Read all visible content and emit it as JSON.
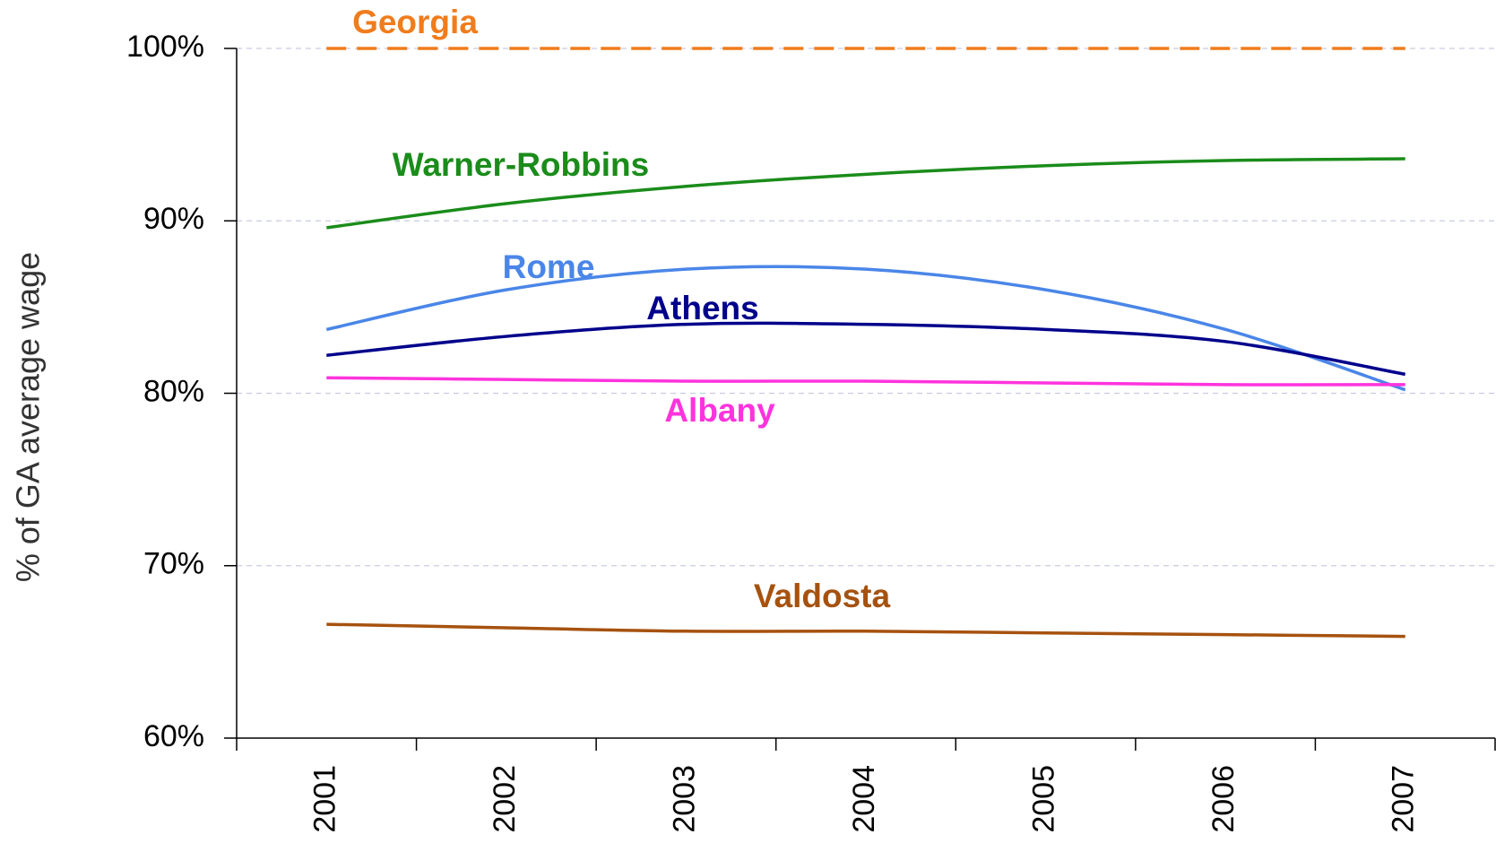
{
  "chart_data": {
    "type": "line",
    "y_axis_label": "% of GA average wage",
    "categories": [
      "2001",
      "2002",
      "2003",
      "2004",
      "2005",
      "2006",
      "2007"
    ],
    "series": [
      {
        "name": "Georgia",
        "color": "#f07c1c",
        "dashed": true,
        "values": [
          100,
          100,
          100,
          100,
          100,
          100,
          100
        ]
      },
      {
        "name": "Warner-Robbins",
        "color": "#1a8c1a",
        "values": [
          89.6,
          91.0,
          92.0,
          92.7,
          93.2,
          93.5,
          93.6
        ]
      },
      {
        "name": "Rome",
        "color": "#4a86e8",
        "values": [
          83.7,
          86.0,
          87.2,
          87.2,
          86.0,
          83.7,
          80.2
        ]
      },
      {
        "name": "Athens",
        "color": "#00008b",
        "values": [
          82.2,
          83.3,
          84.0,
          84.0,
          83.7,
          83.0,
          81.1
        ]
      },
      {
        "name": "Albany",
        "color": "#ff33dd",
        "values": [
          80.9,
          80.8,
          80.7,
          80.7,
          80.6,
          80.5,
          80.5
        ]
      },
      {
        "name": "Valdosta",
        "color": "#a6520f",
        "values": [
          66.6,
          66.4,
          66.2,
          66.2,
          66.1,
          66.0,
          65.9
        ]
      }
    ],
    "ylim": [
      60,
      100
    ],
    "yticks": [
      {
        "value": 60,
        "label": "60%"
      },
      {
        "value": 70,
        "label": "70%"
      },
      {
        "value": 80,
        "label": "80%"
      },
      {
        "value": 90,
        "label": "90%"
      },
      {
        "value": 100,
        "label": "100%"
      }
    ],
    "grid": true
  }
}
